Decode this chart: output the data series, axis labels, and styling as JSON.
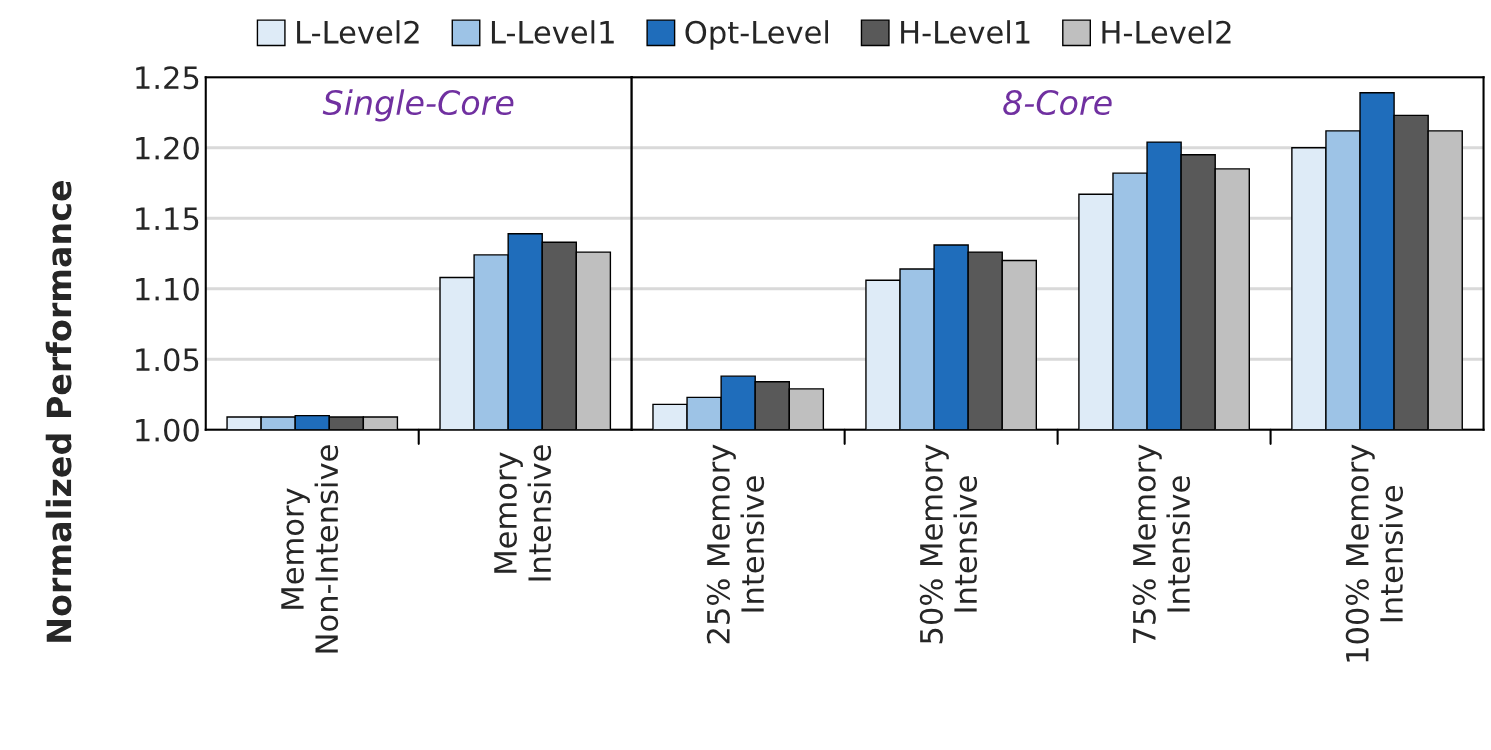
{
  "chart_data": [
    {
      "type": "bar",
      "ylabel": "Normalized Performance",
      "categories": [
        "Memory\nNon-Intensive",
        "Memory\nIntensive"
      ],
      "series": [
        {
          "name": "L-Level2",
          "color": "#deebf7",
          "values": [
            1.009,
            1.108
          ]
        },
        {
          "name": "L-Level1",
          "color": "#9dc3e6",
          "values": [
            1.009,
            1.124
          ]
        },
        {
          "name": "Opt-Level",
          "color": "#1f6dbb",
          "values": [
            1.01,
            1.139
          ]
        },
        {
          "name": "H-Level1",
          "color": "#595959",
          "values": [
            1.009,
            1.133
          ]
        },
        {
          "name": "H-Level2",
          "color": "#bfbfbf",
          "values": [
            1.009,
            1.126
          ]
        }
      ],
      "ylim": [
        1.0,
        1.25
      ],
      "yticks": [
        {
          "value": 1.0,
          "label": "1.00"
        },
        {
          "value": 1.05,
          "label": "1.05"
        },
        {
          "value": 1.1,
          "label": "1.10"
        },
        {
          "value": 1.15,
          "label": "1.15"
        },
        {
          "value": 1.2,
          "label": "1.20"
        },
        {
          "value": 1.25,
          "label": "1.25"
        }
      ],
      "annotations": [
        "Single-Core"
      ],
      "grid": "y",
      "legend": "top"
    },
    {
      "type": "bar",
      "categories": [
        "25% Memory\nIntensive",
        "50% Memory\nIntensive",
        "75% Memory\nIntensive",
        "100% Memory\nIntensive"
      ],
      "series": [
        {
          "color": "#deebf7",
          "values": [
            1.018,
            1.106,
            1.167,
            1.2
          ]
        },
        {
          "color": "#9dc3e6",
          "values": [
            1.023,
            1.114,
            1.182,
            1.212
          ]
        },
        {
          "color": "#1f6dbb",
          "values": [
            1.038,
            1.131,
            1.204,
            1.239
          ]
        },
        {
          "color": "#595959",
          "values": [
            1.034,
            1.126,
            1.195,
            1.223
          ]
        },
        {
          "color": "#bfbfbf",
          "values": [
            1.029,
            1.12,
            1.185,
            1.212
          ]
        }
      ],
      "ylim": [
        1.0,
        1.25
      ],
      "yticks": [
        {
          "value": 1.0,
          "label": null
        },
        {
          "value": 1.05,
          "label": null
        },
        {
          "value": 1.1,
          "label": null
        },
        {
          "value": 1.15,
          "label": null
        },
        {
          "value": 1.2,
          "label": null
        },
        {
          "value": 1.25,
          "label": null
        }
      ],
      "tick_labels": "x",
      "annotations": [
        "8-Core"
      ],
      "grid": "y"
    }
  ]
}
